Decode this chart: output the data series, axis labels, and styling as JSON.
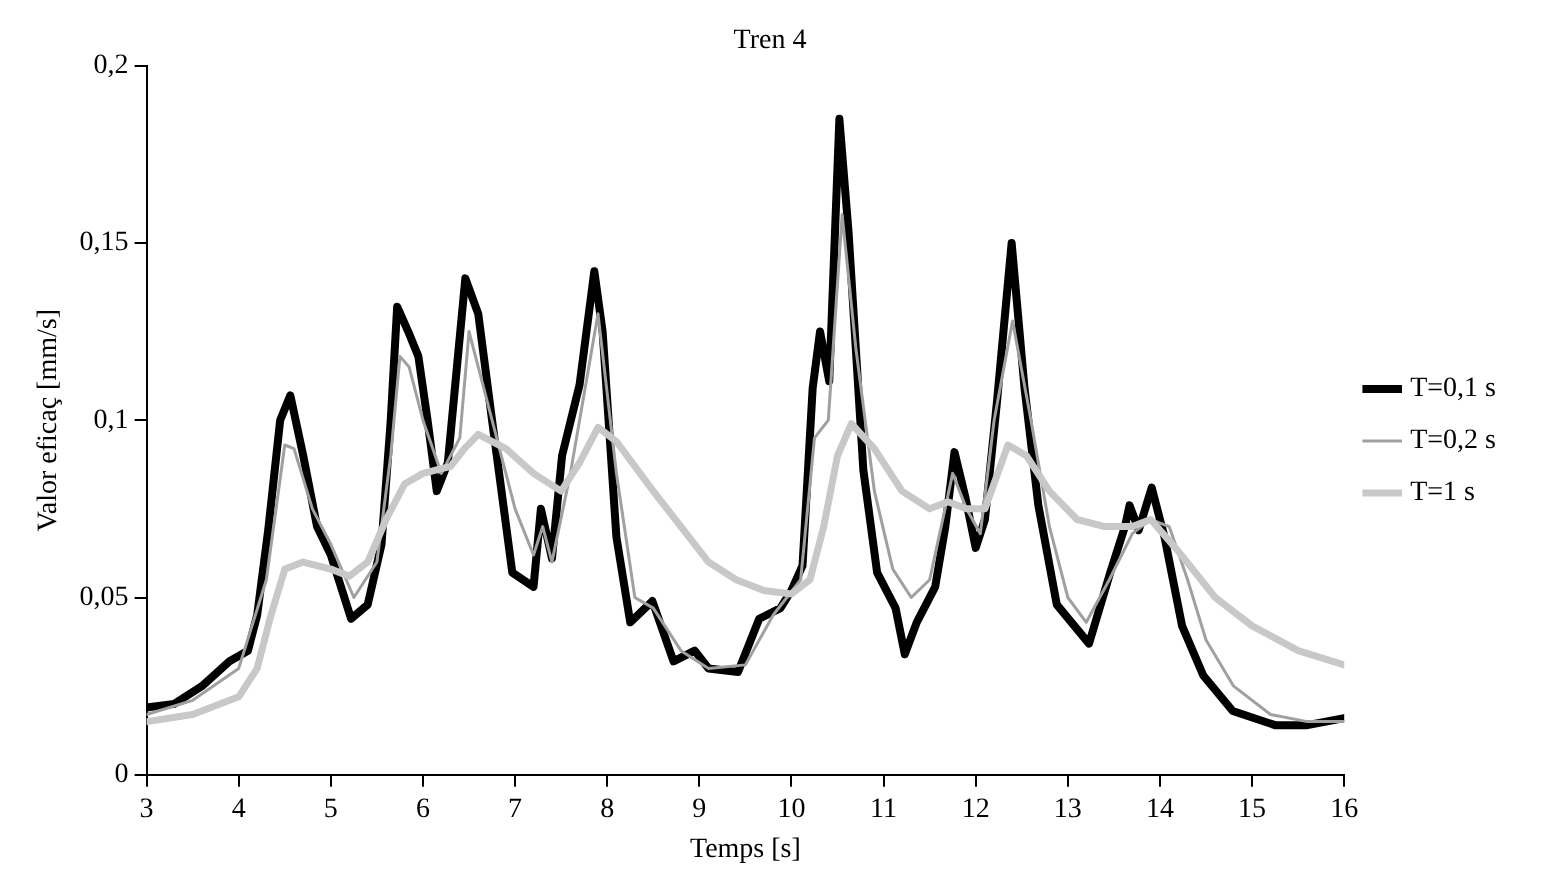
{
  "chart_data": {
    "type": "line",
    "title": "Tren 4",
    "xlabel": "Temps [s]",
    "ylabel": "Valor eficaç [mm/s]",
    "xlim": [
      3,
      16
    ],
    "xticks": [
      3,
      4,
      5,
      6,
      7,
      8,
      9,
      10,
      11,
      12,
      13,
      14,
      15,
      16
    ],
    "ylim": [
      0,
      0.2
    ],
    "yticks": [
      0,
      {
        "value": 0.05,
        "label": "0,05"
      },
      {
        "value": 0.1,
        "label": "0,1"
      },
      {
        "value": 0.15,
        "label": "0,15"
      },
      {
        "value": 0.2,
        "label": "0,2"
      }
    ],
    "grid": false,
    "legend": "right",
    "marker": "none",
    "line_style": "solid",
    "series": [
      {
        "name": "T=0,1 s",
        "color": "#000000",
        "x": [
          3,
          3.3,
          3.6,
          3.9,
          4.1,
          4.2,
          4.32,
          4.45,
          4.56,
          4.7,
          4.85,
          5.0,
          5.22,
          5.4,
          5.55,
          5.65,
          5.72,
          5.84,
          5.95,
          6.05,
          6.15,
          6.27,
          6.46,
          6.6,
          6.75,
          6.97,
          7.2,
          7.28,
          7.4,
          7.51,
          7.7,
          7.86,
          7.95,
          8.1,
          8.25,
          8.49,
          8.72,
          8.95,
          9.1,
          9.42,
          9.65,
          9.88,
          10.0,
          10.12,
          10.23,
          10.31,
          10.41,
          10.52,
          10.62,
          10.78,
          10.93,
          11.13,
          11.23,
          11.36,
          11.56,
          11.67,
          11.77,
          11.89,
          12.0,
          12.1,
          12.23,
          12.39,
          12.53,
          12.68,
          12.88,
          13.23,
          13.46,
          13.62,
          13.67,
          13.77,
          13.91,
          14.05,
          14.24,
          14.47,
          14.79,
          15.25,
          15.6,
          16
        ],
        "values": [
          0.019,
          0.02,
          0.025,
          0.032,
          0.035,
          0.045,
          0.069,
          0.1,
          0.107,
          0.09,
          0.07,
          0.062,
          0.044,
          0.048,
          0.065,
          0.1,
          0.132,
          0.125,
          0.118,
          0.1,
          0.08,
          0.088,
          0.14,
          0.13,
          0.1,
          0.057,
          0.053,
          0.075,
          0.061,
          0.09,
          0.11,
          0.142,
          0.125,
          0.067,
          0.043,
          0.049,
          0.032,
          0.035,
          0.03,
          0.029,
          0.044,
          0.047,
          0.052,
          0.059,
          0.109,
          0.125,
          0.111,
          0.185,
          0.153,
          0.086,
          0.057,
          0.047,
          0.034,
          0.043,
          0.053,
          0.07,
          0.091,
          0.078,
          0.064,
          0.072,
          0.105,
          0.15,
          0.109,
          0.076,
          0.048,
          0.037,
          0.057,
          0.07,
          0.076,
          0.069,
          0.081,
          0.067,
          0.042,
          0.028,
          0.018,
          0.014,
          0.014,
          0.016
        ]
      },
      {
        "name": "T=0,2 s",
        "color": "#a0a0a0",
        "x": [
          3,
          3.5,
          4,
          4.3,
          4.5,
          4.6,
          4.8,
          5.0,
          5.25,
          5.5,
          5.65,
          5.75,
          5.85,
          6.0,
          6.2,
          6.4,
          6.5,
          6.7,
          7.0,
          7.2,
          7.3,
          7.4,
          7.6,
          7.9,
          8.1,
          8.3,
          8.5,
          8.8,
          9.1,
          9.5,
          9.8,
          10.1,
          10.25,
          10.4,
          10.55,
          10.7,
          10.9,
          11.1,
          11.3,
          11.5,
          11.75,
          11.9,
          12.05,
          12.2,
          12.4,
          12.6,
          12.8,
          13.0,
          13.2,
          13.45,
          13.7,
          13.9,
          14.1,
          14.3,
          14.5,
          14.8,
          15.2,
          15.6,
          16
        ],
        "values": [
          0.017,
          0.021,
          0.03,
          0.055,
          0.093,
          0.092,
          0.075,
          0.065,
          0.05,
          0.06,
          0.09,
          0.118,
          0.115,
          0.1,
          0.085,
          0.095,
          0.125,
          0.105,
          0.075,
          0.062,
          0.07,
          0.06,
          0.085,
          0.13,
          0.085,
          0.05,
          0.047,
          0.035,
          0.03,
          0.031,
          0.045,
          0.055,
          0.095,
          0.1,
          0.158,
          0.12,
          0.08,
          0.058,
          0.05,
          0.055,
          0.085,
          0.075,
          0.068,
          0.1,
          0.128,
          0.1,
          0.07,
          0.05,
          0.043,
          0.055,
          0.068,
          0.072,
          0.07,
          0.055,
          0.038,
          0.025,
          0.017,
          0.015,
          0.015
        ]
      },
      {
        "name": "T=1 s",
        "color": "#c8c8c8",
        "x": [
          3,
          3.5,
          4,
          4.2,
          4.35,
          4.5,
          4.7,
          5.0,
          5.2,
          5.4,
          5.6,
          5.8,
          6.0,
          6.3,
          6.45,
          6.6,
          6.9,
          7.2,
          7.5,
          7.7,
          7.9,
          8.1,
          8.5,
          8.8,
          9.1,
          9.4,
          9.7,
          10.0,
          10.2,
          10.35,
          10.5,
          10.65,
          10.9,
          11.2,
          11.5,
          11.7,
          11.9,
          12.1,
          12.35,
          12.55,
          12.8,
          13.1,
          13.4,
          13.7,
          13.9,
          14.2,
          14.6,
          15.0,
          15.5,
          16
        ],
        "values": [
          0.015,
          0.017,
          0.022,
          0.03,
          0.045,
          0.058,
          0.06,
          0.058,
          0.056,
          0.06,
          0.072,
          0.082,
          0.085,
          0.087,
          0.092,
          0.096,
          0.092,
          0.085,
          0.08,
          0.088,
          0.098,
          0.094,
          0.08,
          0.07,
          0.06,
          0.055,
          0.052,
          0.051,
          0.055,
          0.07,
          0.09,
          0.099,
          0.092,
          0.08,
          0.075,
          0.077,
          0.075,
          0.075,
          0.093,
          0.09,
          0.08,
          0.072,
          0.07,
          0.07,
          0.072,
          0.063,
          0.05,
          0.042,
          0.035,
          0.031
        ]
      }
    ]
  }
}
